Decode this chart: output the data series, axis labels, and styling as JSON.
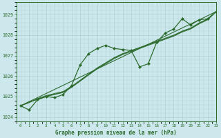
{
  "title": "Graphe pression niveau de la mer (hPa)",
  "background_color": "#cde8ed",
  "grid_color": "#afd0d6",
  "line_color": "#2d6b2d",
  "xlim": [
    -0.5,
    23
  ],
  "ylim": [
    1023.8,
    1029.6
  ],
  "yticks": [
    1024,
    1025,
    1026,
    1027,
    1028,
    1029
  ],
  "xticks": [
    0,
    1,
    2,
    3,
    4,
    5,
    6,
    7,
    8,
    9,
    10,
    11,
    12,
    13,
    14,
    15,
    16,
    17,
    18,
    19,
    20,
    21,
    22,
    23
  ],
  "straight_line": {
    "x": [
      0,
      23
    ],
    "y": [
      1024.55,
      1029.15
    ]
  },
  "smooth_lines": [
    [
      1024.55,
      1024.75,
      1024.85,
      1025.0,
      1025.1,
      1025.2,
      1025.45,
      1025.75,
      1026.05,
      1026.35,
      1026.6,
      1026.85,
      1027.05,
      1027.2,
      1027.35,
      1027.5,
      1027.65,
      1027.8,
      1027.95,
      1028.15,
      1028.3,
      1028.55,
      1028.75,
      1029.15
    ],
    [
      1024.55,
      1024.72,
      1024.88,
      1025.02,
      1025.12,
      1025.22,
      1025.47,
      1025.78,
      1026.08,
      1026.38,
      1026.63,
      1026.88,
      1027.08,
      1027.23,
      1027.38,
      1027.53,
      1027.68,
      1027.83,
      1027.98,
      1028.18,
      1028.33,
      1028.58,
      1028.78,
      1029.15
    ],
    [
      1024.55,
      1024.7,
      1024.9,
      1025.05,
      1025.15,
      1025.25,
      1025.5,
      1025.8,
      1026.1,
      1026.4,
      1026.65,
      1026.9,
      1027.1,
      1027.25,
      1027.4,
      1027.55,
      1027.7,
      1027.85,
      1028.0,
      1028.2,
      1028.35,
      1028.6,
      1028.8,
      1029.15
    ]
  ],
  "marker_line": {
    "x": [
      0,
      1,
      2,
      3,
      4,
      5,
      6,
      7,
      8,
      9,
      10,
      11,
      12,
      13,
      14,
      15,
      16,
      17,
      18,
      19,
      20,
      21,
      22,
      23
    ],
    "y": [
      1024.55,
      1024.35,
      1024.85,
      1025.0,
      1024.95,
      1025.1,
      1025.55,
      1026.55,
      1027.1,
      1027.35,
      1027.5,
      1027.35,
      1027.3,
      1027.25,
      1026.45,
      1026.6,
      1027.65,
      1028.1,
      1028.3,
      1028.8,
      1028.5,
      1028.75,
      1028.8,
      1029.15
    ]
  }
}
